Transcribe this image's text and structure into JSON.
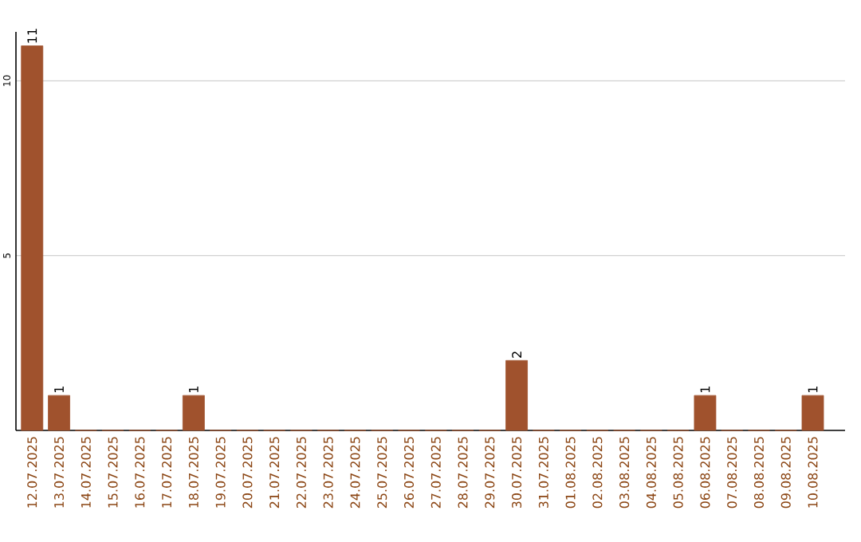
{
  "chart_data": {
    "type": "bar",
    "categories": [
      "12.07.2025",
      "13.07.2025",
      "14.07.2025",
      "15.07.2025",
      "16.07.2025",
      "17.07.2025",
      "18.07.2025",
      "19.07.2025",
      "20.07.2025",
      "21.07.2025",
      "22.07.2025",
      "23.07.2025",
      "24.07.2025",
      "25.07.2025",
      "26.07.2025",
      "27.07.2025",
      "28.07.2025",
      "29.07.2025",
      "30.07.2025",
      "31.07.2025",
      "01.08.2025",
      "02.08.2025",
      "03.08.2025",
      "04.08.2025",
      "05.08.2025",
      "06.08.2025",
      "07.08.2025",
      "08.08.2025",
      "09.08.2025",
      "10.08.2025"
    ],
    "values": [
      11,
      1,
      0,
      0,
      0,
      0,
      1,
      0,
      0,
      0,
      0,
      0,
      0,
      0,
      0,
      0,
      0,
      0,
      2,
      0,
      0,
      0,
      0,
      0,
      0,
      1,
      0,
      0,
      0,
      1
    ],
    "value_labels": [
      "11",
      "1",
      null,
      null,
      null,
      null,
      "1",
      null,
      null,
      null,
      null,
      null,
      null,
      null,
      null,
      null,
      null,
      null,
      "2",
      null,
      null,
      null,
      null,
      null,
      null,
      "1",
      null,
      null,
      null,
      "1"
    ],
    "color": "#a0522d",
    "ylim": [
      0,
      11.4
    ],
    "yticks": [
      5,
      10
    ],
    "grid": "y"
  }
}
